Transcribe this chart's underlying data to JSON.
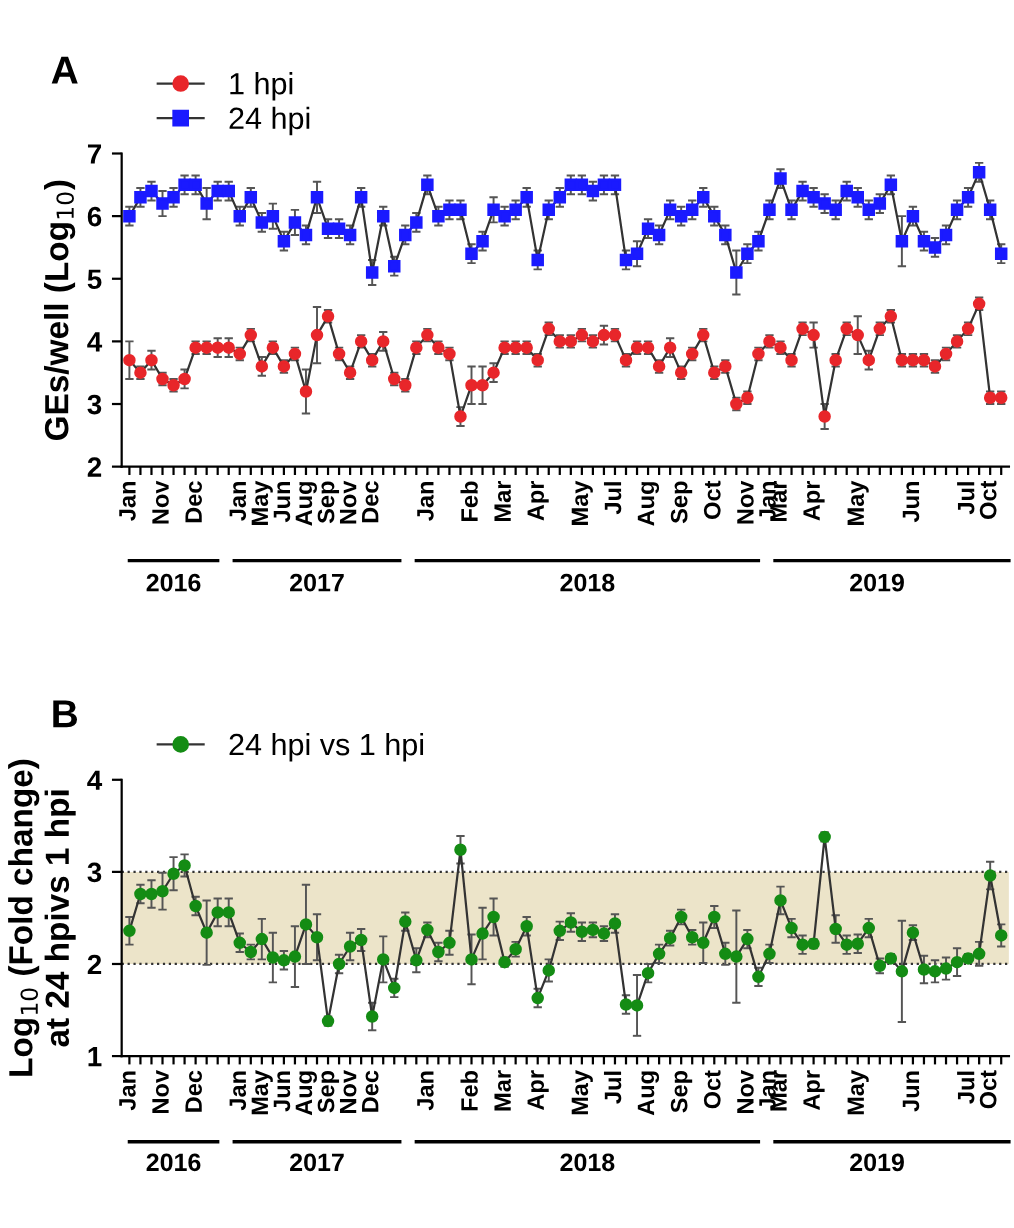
{
  "chart_data": [
    {
      "type": "line",
      "title": "A",
      "ylabel": "GEs/well (Log$_{10}$)",
      "categories": [
        "Jan",
        null,
        null,
        "Nov",
        null,
        null,
        "Dec",
        null,
        null,
        null,
        "Jan",
        null,
        "May",
        null,
        "Jun",
        null,
        "Aug",
        null,
        "Sep",
        null,
        "Nov",
        null,
        "Dec",
        null,
        null,
        null,
        null,
        "Jan",
        null,
        null,
        null,
        "Feb",
        null,
        null,
        "Mar",
        null,
        null,
        "Apr",
        null,
        null,
        null,
        "May",
        null,
        null,
        "Jul",
        null,
        null,
        "Aug",
        null,
        null,
        "Sep",
        null,
        null,
        "Oct",
        null,
        null,
        "Nov",
        null,
        "Jan",
        "Mar",
        null,
        null,
        "Apr",
        null,
        null,
        null,
        "May",
        null,
        null,
        null,
        null,
        "Jun",
        null,
        null,
        null,
        null,
        "Jul",
        null,
        "Oct",
        null
      ],
      "series": [
        {
          "name": "1 hpi",
          "color": "#e8262a",
          "marker": "circle",
          "values": [
            3.7,
            3.5,
            3.7,
            3.4,
            3.3,
            3.4,
            3.9,
            3.9,
            3.9,
            3.9,
            3.8,
            4.1,
            3.6,
            3.9,
            3.6,
            3.8,
            3.2,
            4.1,
            4.4,
            3.8,
            3.5,
            4.0,
            3.7,
            4.0,
            3.4,
            3.3,
            3.9,
            4.1,
            3.9,
            3.8,
            2.8,
            3.3,
            3.3,
            3.5,
            3.9,
            3.9,
            3.9,
            3.7,
            4.2,
            4.0,
            4.0,
            4.1,
            4.0,
            4.1,
            4.1,
            3.7,
            3.9,
            3.9,
            3.6,
            3.9,
            3.5,
            3.8,
            4.1,
            3.5,
            3.6,
            3.0,
            3.1,
            3.8,
            4.0,
            3.9,
            3.7,
            4.2,
            4.1,
            2.8,
            3.7,
            4.2,
            4.1,
            3.7,
            4.2,
            4.4,
            3.7,
            3.7,
            3.7,
            3.6,
            3.8,
            4.0,
            4.2,
            4.6,
            3.1,
            3.1
          ],
          "errors": [
            0.3,
            0.1,
            0.15,
            0.1,
            0.1,
            0.15,
            0.1,
            0.1,
            0.15,
            0.15,
            0.1,
            0.1,
            0.15,
            0.1,
            0.1,
            0.1,
            0.35,
            0.45,
            0.1,
            0.1,
            0.1,
            0.1,
            0.1,
            0.15,
            0.1,
            0.1,
            0.1,
            0.1,
            0.1,
            0.1,
            0.15,
            0.3,
            0.3,
            0.15,
            0.1,
            0.1,
            0.1,
            0.1,
            0.1,
            0.1,
            0.1,
            0.1,
            0.1,
            0.15,
            0.1,
            0.1,
            0.1,
            0.1,
            0.1,
            0.15,
            0.1,
            0.1,
            0.1,
            0.1,
            0.1,
            0.1,
            0.1,
            0.1,
            0.1,
            0.1,
            0.1,
            0.1,
            0.2,
            0.2,
            0.1,
            0.1,
            0.3,
            0.15,
            0.1,
            0.1,
            0.1,
            0.1,
            0.1,
            0.1,
            0.1,
            0.1,
            0.1,
            0.1,
            0.1,
            0.1
          ]
        },
        {
          "name": "24 hpi",
          "color": "#1a1aff",
          "marker": "square",
          "values": [
            6.0,
            6.3,
            6.4,
            6.2,
            6.3,
            6.5,
            6.5,
            6.2,
            6.4,
            6.4,
            6.0,
            6.3,
            5.9,
            6.0,
            5.6,
            5.9,
            5.7,
            6.3,
            5.8,
            5.8,
            5.7,
            6.3,
            5.1,
            6.0,
            5.2,
            5.7,
            5.9,
            6.5,
            6.0,
            6.1,
            6.1,
            5.4,
            5.6,
            6.1,
            6.0,
            6.1,
            6.3,
            5.3,
            6.1,
            6.3,
            6.5,
            6.5,
            6.4,
            6.5,
            6.5,
            5.3,
            5.4,
            5.8,
            5.7,
            6.1,
            6.0,
            6.1,
            6.3,
            6.0,
            5.7,
            5.1,
            5.4,
            5.6,
            6.1,
            6.6,
            6.1,
            6.4,
            6.3,
            6.2,
            6.1,
            6.4,
            6.3,
            6.1,
            6.2,
            6.5,
            5.6,
            6.0,
            5.6,
            5.5,
            5.7,
            6.1,
            6.3,
            6.7,
            6.1,
            5.4
          ],
          "errors": [
            0.15,
            0.15,
            0.15,
            0.2,
            0.15,
            0.15,
            0.15,
            0.25,
            0.15,
            0.15,
            0.15,
            0.15,
            0.15,
            0.2,
            0.15,
            0.2,
            0.15,
            0.25,
            0.15,
            0.15,
            0.15,
            0.15,
            0.2,
            0.15,
            0.15,
            0.15,
            0.15,
            0.15,
            0.15,
            0.15,
            0.15,
            0.15,
            0.15,
            0.2,
            0.15,
            0.15,
            0.15,
            0.15,
            0.15,
            0.15,
            0.15,
            0.15,
            0.15,
            0.15,
            0.15,
            0.15,
            0.2,
            0.15,
            0.15,
            0.15,
            0.15,
            0.15,
            0.15,
            0.15,
            0.15,
            0.35,
            0.15,
            0.15,
            0.15,
            0.15,
            0.15,
            0.15,
            0.15,
            0.15,
            0.15,
            0.15,
            0.15,
            0.15,
            0.15,
            0.15,
            0.4,
            0.15,
            0.15,
            0.15,
            0.15,
            0.15,
            0.15,
            0.15,
            0.15,
            0.15
          ]
        }
      ],
      "ylim": [
        2,
        7
      ],
      "yticks": [
        2,
        3,
        4,
        5,
        6,
        7
      ],
      "legend": "top left",
      "grid": false,
      "annotations": [
        "2016",
        "2017",
        "2018",
        "2019"
      ]
    },
    {
      "type": "line",
      "title": "B",
      "ylabel": "Log$_{10}$ (Fold change)\nat 24 hpivs 1 hpi",
      "categories": [
        "Jan",
        null,
        null,
        "Nov",
        null,
        null,
        "Dec",
        null,
        null,
        null,
        "Jan",
        null,
        "May",
        null,
        "Jun",
        null,
        "Aug",
        null,
        "Sep",
        null,
        "Nov",
        null,
        "Dec",
        null,
        null,
        null,
        null,
        "Jan",
        null,
        null,
        null,
        "Feb",
        null,
        null,
        "Mar",
        null,
        null,
        "Apr",
        null,
        null,
        null,
        "May",
        null,
        null,
        "Jul",
        null,
        null,
        "Aug",
        null,
        null,
        "Sep",
        null,
        null,
        "Oct",
        null,
        null,
        "Nov",
        null,
        "Jan",
        "Mar",
        null,
        null,
        "Apr",
        null,
        null,
        null,
        "May",
        null,
        null,
        null,
        null,
        "Jun",
        null,
        null,
        null,
        null,
        "Jul",
        null,
        "Oct",
        null
      ],
      "series": [
        {
          "name": "24 hpi vs 1 hpi",
          "color": "#148c14",
          "marker": "circle",
          "values": [
            2.36,
            2.76,
            2.76,
            2.79,
            2.98,
            3.07,
            2.63,
            2.34,
            2.56,
            2.56,
            2.23,
            2.13,
            2.27,
            2.07,
            2.04,
            2.08,
            2.43,
            2.29,
            1.38,
            2.0,
            2.19,
            2.26,
            1.43,
            2.05,
            1.74,
            2.46,
            2.04,
            2.37,
            2.13,
            2.23,
            3.24,
            2.05,
            2.33,
            2.51,
            2.02,
            2.16,
            2.41,
            1.63,
            1.93,
            2.36,
            2.45,
            2.35,
            2.37,
            2.33,
            2.44,
            1.56,
            1.55,
            1.9,
            2.11,
            2.28,
            2.51,
            2.29,
            2.23,
            2.51,
            2.11,
            2.08,
            2.27,
            1.86,
            2.11,
            2.69,
            2.39,
            2.21,
            2.22,
            3.38,
            2.38,
            2.21,
            2.22,
            2.39,
            1.98,
            2.06,
            1.92,
            2.34,
            1.94,
            1.92,
            1.95,
            2.02,
            2.06,
            2.11,
            2.96,
            2.31
          ],
          "errors": [
            0.15,
            0.1,
            0.15,
            0.2,
            0.18,
            0.12,
            0.1,
            0.35,
            0.15,
            0.15,
            0.1,
            0.08,
            0.22,
            0.27,
            0.1,
            0.33,
            0.43,
            0.25,
            0.05,
            0.1,
            0.15,
            0.12,
            0.15,
            0.25,
            0.1,
            0.1,
            0.13,
            0.08,
            0.1,
            0.13,
            0.15,
            0.27,
            0.28,
            0.2,
            0.05,
            0.08,
            0.1,
            0.1,
            0.12,
            0.1,
            0.1,
            0.1,
            0.08,
            0.08,
            0.1,
            0.1,
            0.33,
            0.1,
            0.1,
            0.08,
            0.08,
            0.08,
            0.22,
            0.12,
            0.12,
            0.5,
            0.1,
            0.1,
            0.1,
            0.15,
            0.1,
            0.1,
            0.05,
            0.05,
            0.15,
            0.1,
            0.1,
            0.1,
            0.08,
            0.05,
            0.55,
            0.08,
            0.15,
            0.12,
            0.12,
            0.15,
            0.05,
            0.13,
            0.15,
            0.12
          ]
        }
      ],
      "ylim": [
        1,
        4
      ],
      "yticks": [
        1,
        2,
        3,
        4
      ],
      "legend": "top left",
      "grid": false,
      "bands": [
        {
          "axis": "y",
          "from": 2,
          "to": 3,
          "color": "#ece4c9"
        }
      ],
      "ref_lines": [
        {
          "axis": "y",
          "value": 2,
          "line_style": "dotted"
        },
        {
          "axis": "y",
          "value": 3,
          "line_style": "dotted"
        }
      ],
      "annotations": [
        "2016",
        "2017",
        "2018",
        "2019"
      ]
    }
  ]
}
